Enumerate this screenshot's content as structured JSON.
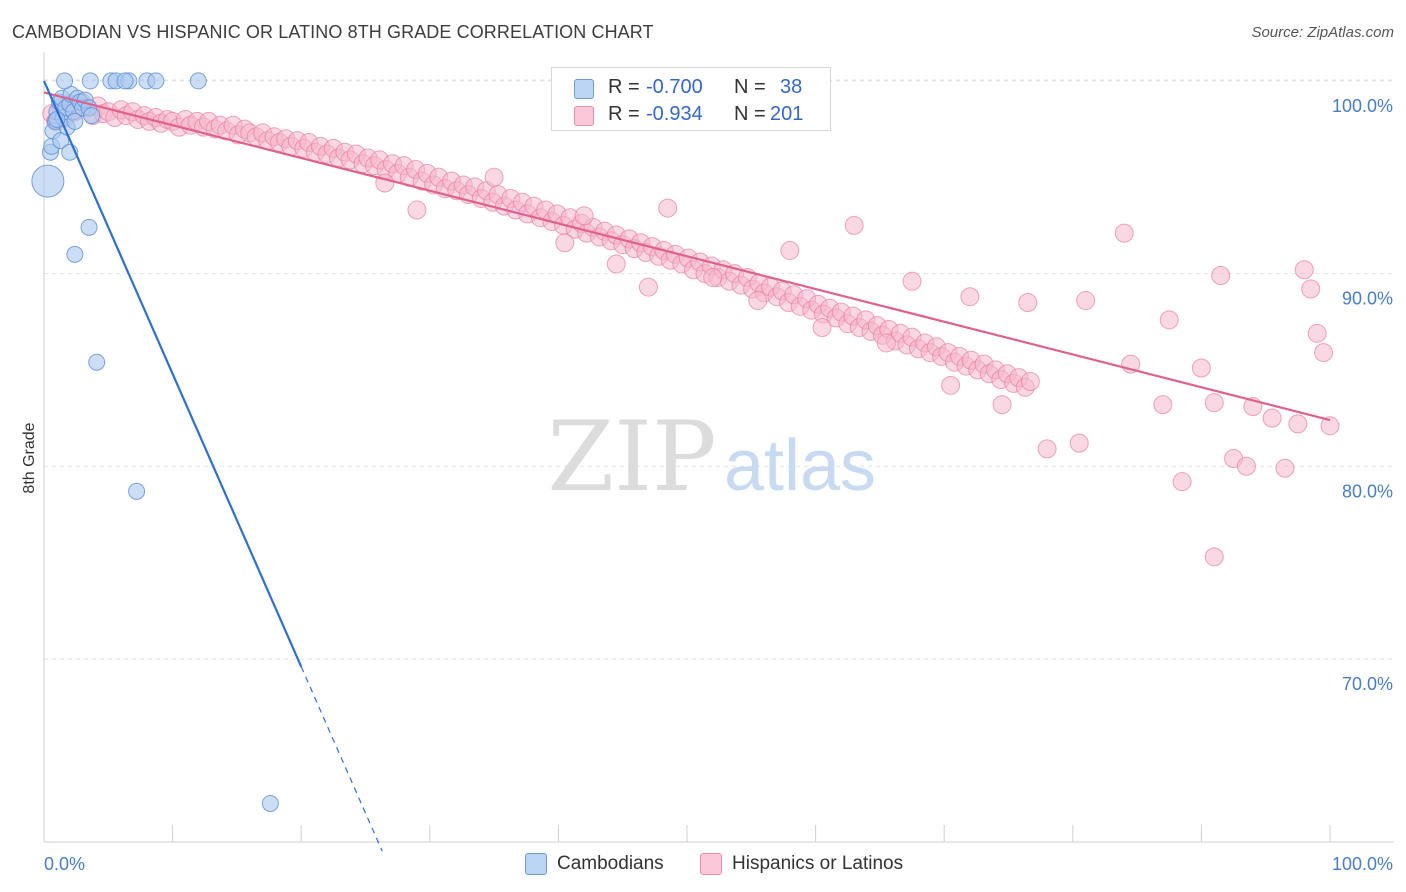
{
  "title": "CAMBODIAN VS HISPANIC OR LATINO 8TH GRADE CORRELATION CHART",
  "source": "Source: ZipAtlas.com",
  "watermark": {
    "zip": "ZIP",
    "atlas": "atlas"
  },
  "legend": {
    "series1": {
      "r_label": "R =",
      "r_value": "-0.700",
      "n_label": "N =",
      "n_value": "38"
    },
    "series2": {
      "r_label": "R =",
      "r_value": "-0.934",
      "n_label": "N =",
      "n_value": "201"
    }
  },
  "chart_data": {
    "type": "scatter",
    "title": "CAMBODIAN VS HISPANIC OR LATINO 8TH GRADE CORRELATION CHART",
    "xlabel": "",
    "ylabel": "8th Grade",
    "xlim": [
      0,
      100
    ],
    "ylim": [
      60.5,
      101.5
    ],
    "x_tick_labels": [
      "0.0%",
      "100.0%"
    ],
    "y_ticks": [
      70,
      80,
      90,
      100
    ],
    "y_tick_labels": [
      "70.0%",
      "80.0%",
      "90.0%",
      "100.0%"
    ],
    "grid": true,
    "legend_position": "bottom",
    "series": [
      {
        "name": "Cambodians",
        "color": "#a8c8f0",
        "edge": "#5b8fd6",
        "trend_color": "#2f6fd0",
        "trend": {
          "x0": 0,
          "y0": 100.0,
          "x1": 20,
          "y1": 69.6,
          "dash_to_x": 26.3
        },
        "points": [
          [
            0.3,
            94.8,
            3
          ],
          [
            0.5,
            96.3,
            1
          ],
          [
            0.6,
            96.6,
            1
          ],
          [
            0.7,
            97.4,
            1
          ],
          [
            0.9,
            97.9,
            1
          ],
          [
            1.0,
            98.4,
            1
          ],
          [
            1.2,
            98.9,
            1
          ],
          [
            1.3,
            96.9,
            1
          ],
          [
            1.4,
            99.1,
            1
          ],
          [
            1.5,
            98.1,
            1
          ],
          [
            1.7,
            98.6,
            1
          ],
          [
            1.8,
            97.6,
            1
          ],
          [
            2.0,
            98.8,
            1
          ],
          [
            2.1,
            99.3,
            1
          ],
          [
            1.6,
            100.0,
            1
          ],
          [
            2.3,
            98.4,
            1
          ],
          [
            2.4,
            97.9,
            1
          ],
          [
            2.6,
            99.1,
            1
          ],
          [
            2.8,
            98.9,
            1
          ],
          [
            3.0,
            98.6,
            1
          ],
          [
            3.2,
            99.0,
            1
          ],
          [
            3.5,
            98.6,
            1
          ],
          [
            3.7,
            98.2,
            1
          ],
          [
            3.6,
            100.0,
            1
          ],
          [
            5.2,
            100.0,
            1
          ],
          [
            5.6,
            100.0,
            1
          ],
          [
            6.6,
            100.0,
            1
          ],
          [
            6.3,
            100.0,
            1
          ],
          [
            8.0,
            100.0,
            1
          ],
          [
            8.7,
            100.0,
            1
          ],
          [
            12.0,
            100.0,
            1
          ],
          [
            2.0,
            96.3,
            1
          ],
          [
            2.4,
            91.0,
            1
          ],
          [
            3.5,
            92.4,
            1
          ],
          [
            4.1,
            85.4,
            1
          ],
          [
            7.2,
            78.7,
            1
          ],
          [
            17.6,
            62.5,
            1
          ],
          [
            1.0,
            98.0,
            1
          ]
        ]
      },
      {
        "name": "Hispanics or Latinos",
        "color": "#f6b8cc",
        "edge": "#e87fa0",
        "trend_color": "#e0608e",
        "trend": {
          "x0": 0,
          "y0": 99.4,
          "x1": 100,
          "y1": 82.4
        },
        "points": [
          [
            0.6,
            98.3
          ],
          [
            0.9,
            97.9
          ],
          [
            1.3,
            98.6
          ],
          [
            1.7,
            98.1
          ],
          [
            2.1,
            98.8
          ],
          [
            2.4,
            98.4
          ],
          [
            2.9,
            98.9
          ],
          [
            3.3,
            98.6
          ],
          [
            3.8,
            98.2
          ],
          [
            4.2,
            98.7
          ],
          [
            4.6,
            98.3
          ],
          [
            5.0,
            98.4
          ],
          [
            5.5,
            98.1
          ],
          [
            6.0,
            98.5
          ],
          [
            6.4,
            98.2
          ],
          [
            6.9,
            98.4
          ],
          [
            7.3,
            98.0
          ],
          [
            7.8,
            98.2
          ],
          [
            8.2,
            97.9
          ],
          [
            8.7,
            98.1
          ],
          [
            9.1,
            97.8
          ],
          [
            9.6,
            98.0
          ],
          [
            10.0,
            97.9
          ],
          [
            10.5,
            97.6
          ],
          [
            11.0,
            98.0
          ],
          [
            11.4,
            97.7
          ],
          [
            11.9,
            97.9
          ],
          [
            12.4,
            97.6
          ],
          [
            12.8,
            97.9
          ],
          [
            13.3,
            97.5
          ],
          [
            13.7,
            97.7
          ],
          [
            14.2,
            97.4
          ],
          [
            14.7,
            97.7
          ],
          [
            15.1,
            97.2
          ],
          [
            15.6,
            97.5
          ],
          [
            16.0,
            97.3
          ],
          [
            16.5,
            97.1
          ],
          [
            17.0,
            97.3
          ],
          [
            17.4,
            96.9
          ],
          [
            17.9,
            97.1
          ],
          [
            18.3,
            96.8
          ],
          [
            18.8,
            97.0
          ],
          [
            19.2,
            96.6
          ],
          [
            19.7,
            96.9
          ],
          [
            20.2,
            96.5
          ],
          [
            20.6,
            96.8
          ],
          [
            21.1,
            96.3
          ],
          [
            21.5,
            96.6
          ],
          [
            22.0,
            96.2
          ],
          [
            22.5,
            96.5
          ],
          [
            22.9,
            96.0
          ],
          [
            23.4,
            96.3
          ],
          [
            23.8,
            95.9
          ],
          [
            24.3,
            96.2
          ],
          [
            24.8,
            95.7
          ],
          [
            25.2,
            96.0
          ],
          [
            25.7,
            95.6
          ],
          [
            26.1,
            95.9
          ],
          [
            26.6,
            95.4
          ],
          [
            27.1,
            95.7
          ],
          [
            27.5,
            95.2
          ],
          [
            28.0,
            95.6
          ],
          [
            28.4,
            95.0
          ],
          [
            28.9,
            95.4
          ],
          [
            29.4,
            94.8
          ],
          [
            29.8,
            95.2
          ],
          [
            30.3,
            94.6
          ],
          [
            30.7,
            95.0
          ],
          [
            31.2,
            94.4
          ],
          [
            31.7,
            94.8
          ],
          [
            32.1,
            94.3
          ],
          [
            32.6,
            94.6
          ],
          [
            33.0,
            94.1
          ],
          [
            33.5,
            94.5
          ],
          [
            34.0,
            93.9
          ],
          [
            34.4,
            94.3
          ],
          [
            34.9,
            93.7
          ],
          [
            35.3,
            94.1
          ],
          [
            35.8,
            93.5
          ],
          [
            36.3,
            93.9
          ],
          [
            36.7,
            93.3
          ],
          [
            37.2,
            93.7
          ],
          [
            37.6,
            93.1
          ],
          [
            38.1,
            93.5
          ],
          [
            38.6,
            92.9
          ],
          [
            39.0,
            93.3
          ],
          [
            39.5,
            92.7
          ],
          [
            39.9,
            93.1
          ],
          [
            40.4,
            92.5
          ],
          [
            40.9,
            92.9
          ],
          [
            41.3,
            92.3
          ],
          [
            41.8,
            92.6
          ],
          [
            42.2,
            92.1
          ],
          [
            42.7,
            92.4
          ],
          [
            43.2,
            91.9
          ],
          [
            43.6,
            92.2
          ],
          [
            44.1,
            91.7
          ],
          [
            44.5,
            92.0
          ],
          [
            45.0,
            91.5
          ],
          [
            45.5,
            91.8
          ],
          [
            45.9,
            91.3
          ],
          [
            46.4,
            91.6
          ],
          [
            46.8,
            91.1
          ],
          [
            47.3,
            91.4
          ],
          [
            47.8,
            90.9
          ],
          [
            48.2,
            91.2
          ],
          [
            48.7,
            90.7
          ],
          [
            49.1,
            91.0
          ],
          [
            49.6,
            90.5
          ],
          [
            50.1,
            90.8
          ],
          [
            50.5,
            90.2
          ],
          [
            51.0,
            90.6
          ],
          [
            51.4,
            90.0
          ],
          [
            51.9,
            90.4
          ],
          [
            52.4,
            89.8
          ],
          [
            52.8,
            90.2
          ],
          [
            53.3,
            89.6
          ],
          [
            53.7,
            90.0
          ],
          [
            54.2,
            89.4
          ],
          [
            54.7,
            89.8
          ],
          [
            55.1,
            89.2
          ],
          [
            55.6,
            89.5
          ],
          [
            56.0,
            89.0
          ],
          [
            56.5,
            89.3
          ],
          [
            57.0,
            88.8
          ],
          [
            57.4,
            89.1
          ],
          [
            57.9,
            88.5
          ],
          [
            58.3,
            88.9
          ],
          [
            58.8,
            88.3
          ],
          [
            59.3,
            88.7
          ],
          [
            59.7,
            88.1
          ],
          [
            60.2,
            88.4
          ],
          [
            60.6,
            87.9
          ],
          [
            61.1,
            88.2
          ],
          [
            61.6,
            87.7
          ],
          [
            62.0,
            88.0
          ],
          [
            62.5,
            87.4
          ],
          [
            62.9,
            87.8
          ],
          [
            63.4,
            87.2
          ],
          [
            63.9,
            87.6
          ],
          [
            64.3,
            87.0
          ],
          [
            64.8,
            87.3
          ],
          [
            65.2,
            86.8
          ],
          [
            65.7,
            87.1
          ],
          [
            66.2,
            86.5
          ],
          [
            66.6,
            86.9
          ],
          [
            67.1,
            86.3
          ],
          [
            67.5,
            86.7
          ],
          [
            68.0,
            86.1
          ],
          [
            68.5,
            86.4
          ],
          [
            68.9,
            85.9
          ],
          [
            69.4,
            86.2
          ],
          [
            69.8,
            85.7
          ],
          [
            70.3,
            85.9
          ],
          [
            70.8,
            85.4
          ],
          [
            71.2,
            85.7
          ],
          [
            71.7,
            85.2
          ],
          [
            72.1,
            85.5
          ],
          [
            72.6,
            85.0
          ],
          [
            73.1,
            85.3
          ],
          [
            73.5,
            84.8
          ],
          [
            74.0,
            85.0
          ],
          [
            74.4,
            84.5
          ],
          [
            74.9,
            84.8
          ],
          [
            75.4,
            84.3
          ],
          [
            75.8,
            84.6
          ],
          [
            76.3,
            84.1
          ],
          [
            76.7,
            84.4
          ],
          [
            26.5,
            94.7
          ],
          [
            29.0,
            93.3
          ],
          [
            35.0,
            95.0
          ],
          [
            40.5,
            91.6
          ],
          [
            42.0,
            93.0
          ],
          [
            44.5,
            90.5
          ],
          [
            47.0,
            89.3
          ],
          [
            48.5,
            93.4
          ],
          [
            52.0,
            89.8
          ],
          [
            55.5,
            88.6
          ],
          [
            58.0,
            91.2
          ],
          [
            60.5,
            87.2
          ],
          [
            63.0,
            92.5
          ],
          [
            65.5,
            86.4
          ],
          [
            67.5,
            89.6
          ],
          [
            70.5,
            84.2
          ],
          [
            72.0,
            88.8
          ],
          [
            74.5,
            83.2
          ],
          [
            76.5,
            88.5
          ],
          [
            78.0,
            80.9
          ],
          [
            80.5,
            81.2
          ],
          [
            81.0,
            88.6
          ],
          [
            84.0,
            92.1
          ],
          [
            84.5,
            85.3
          ],
          [
            87.0,
            83.2
          ],
          [
            87.5,
            87.6
          ],
          [
            88.5,
            79.2
          ],
          [
            90.0,
            85.1
          ],
          [
            91.0,
            83.3
          ],
          [
            91.0,
            75.3
          ],
          [
            91.5,
            89.9
          ],
          [
            92.5,
            80.4
          ],
          [
            93.5,
            80.0
          ],
          [
            94.0,
            83.1
          ],
          [
            95.5,
            82.5
          ],
          [
            96.5,
            79.9
          ],
          [
            97.5,
            82.2
          ],
          [
            98.0,
            90.2
          ],
          [
            98.5,
            89.2
          ],
          [
            99.0,
            86.9
          ],
          [
            99.5,
            85.9
          ],
          [
            100.0,
            82.1
          ]
        ]
      }
    ]
  },
  "bottom_legend": [
    {
      "label": "Cambodians",
      "color": "#bcd5f5",
      "edge": "#6d9ae0"
    },
    {
      "label": "Hispanics or Latinos",
      "color": "#fac8d8",
      "edge": "#e98fab"
    }
  ]
}
